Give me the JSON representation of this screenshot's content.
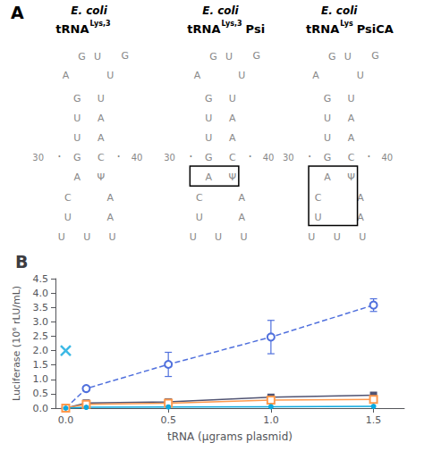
{
  "chart_data": [
    {
      "type": "diagram",
      "title": "A",
      "color": "#888888",
      "titles": [
        [
          "E. coli",
          "tRNA",
          "Lys,3"
        ],
        [
          "E. coli",
          "tRNA",
          "Lys,3",
          "Psi"
        ],
        [
          "E. coli",
          "tRNA",
          "Lys",
          "PsiCA"
        ]
      ],
      "annotations": [
        "A",
        "G",
        "U",
        "U",
        "G",
        "G",
        "U",
        "U",
        "A",
        "U",
        "A",
        "30",
        "·",
        "G",
        "C",
        "·",
        "40",
        "A",
        "Ψ",
        "C",
        "A",
        "U",
        "A",
        "U",
        "U",
        "U"
      ]
    },
    {
      "type": "line",
      "title": "B",
      "xlabel": "tRNA (μgrams plasmid)",
      "ylabel": "Luciferase (10⁶ rLU/mL)",
      "x": [
        0.0,
        0.1,
        0.5,
        1.0,
        1.5
      ],
      "series": [
        {
          "values": [
            0.0,
            0.68,
            1.52,
            2.47,
            3.58
          ],
          "error": [
            0.0,
            0.0,
            0.42,
            0.58,
            0.22
          ],
          "marker": "open_circle",
          "line_style": "dashed"
        },
        {
          "values": [
            0.0,
            0.18,
            0.22,
            0.38,
            0.45
          ],
          "marker": "square",
          "line_style": "solid"
        },
        {
          "values": [
            0.0,
            0.13,
            0.17,
            0.28,
            0.3
          ],
          "marker": "open_square",
          "line_style": "solid"
        },
        {
          "values": [
            0.0,
            0.03,
            0.04,
            0.05,
            0.06
          ],
          "marker": "circle",
          "line_style": "solid"
        },
        {
          "type": "scatter",
          "x": [
            0.0
          ],
          "values": [
            2.0
          ],
          "marker": "x"
        }
      ],
      "xlim": [
        -0.05,
        1.65
      ],
      "xticks": [
        {
          "value": 0,
          "label": "0.0"
        },
        0.5,
        {
          "value": 1,
          "label": "1.0"
        },
        1.5
      ],
      "ylim": [
        0,
        4.5
      ],
      "yticks": [
        {
          "value": 0,
          "label": "0.0"
        },
        0.5,
        {
          "value": 1,
          "label": "1.0"
        },
        1.5,
        {
          "value": 2,
          "label": "2.0"
        },
        2.5,
        {
          "value": 3,
          "label": "3.0"
        },
        3.5,
        {
          "value": 4,
          "label": "4.0"
        },
        4.5
      ],
      "grid": false
    }
  ]
}
